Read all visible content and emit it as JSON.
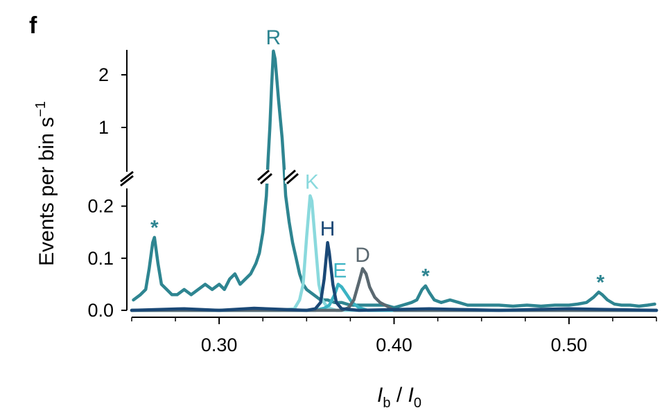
{
  "panel_label": "f",
  "chart_data": {
    "type": "line",
    "title": "",
    "xlabel": {
      "italic_main": "I",
      "sub_b": "b",
      "sep": " / ",
      "italic_main2": "I",
      "sub_0": "0"
    },
    "ylabel": {
      "text": "Events per bin s",
      "sup": "−1"
    },
    "xlim": [
      0.25,
      0.55
    ],
    "x_ticks": [
      0.3,
      0.4,
      0.5
    ],
    "x_tick_labels": [
      "0.30",
      "0.40",
      "0.50"
    ],
    "y_axis_break": true,
    "y_lower_range": [
      0.0,
      0.25
    ],
    "y_lower_ticks": [
      0.0,
      0.1,
      0.2
    ],
    "y_lower_tick_labels": [
      "0.0",
      "0.1",
      "0.2"
    ],
    "y_upper_range": [
      0.0,
      2.5
    ],
    "y_upper_ticks": [
      1,
      2
    ],
    "y_upper_tick_labels": [
      "1",
      "2"
    ],
    "series": [
      {
        "name": "R",
        "color": "#2e8591",
        "points": [
          [
            0.251,
            0.02
          ],
          [
            0.255,
            0.03
          ],
          [
            0.258,
            0.04
          ],
          [
            0.26,
            0.08
          ],
          [
            0.262,
            0.13
          ],
          [
            0.263,
            0.14
          ],
          [
            0.265,
            0.09
          ],
          [
            0.267,
            0.05
          ],
          [
            0.27,
            0.04
          ],
          [
            0.273,
            0.03
          ],
          [
            0.276,
            0.03
          ],
          [
            0.28,
            0.04
          ],
          [
            0.284,
            0.03
          ],
          [
            0.288,
            0.04
          ],
          [
            0.292,
            0.05
          ],
          [
            0.296,
            0.04
          ],
          [
            0.3,
            0.05
          ],
          [
            0.303,
            0.04
          ],
          [
            0.306,
            0.06
          ],
          [
            0.309,
            0.07
          ],
          [
            0.312,
            0.05
          ],
          [
            0.315,
            0.06
          ],
          [
            0.318,
            0.07
          ],
          [
            0.321,
            0.09
          ],
          [
            0.323,
            0.11
          ],
          [
            0.325,
            0.15
          ],
          [
            0.327,
            0.22
          ],
          [
            0.328,
            0.4
          ],
          [
            0.329,
            1.0
          ],
          [
            0.33,
            1.8
          ],
          [
            0.331,
            2.45
          ],
          [
            0.332,
            2.3
          ],
          [
            0.334,
            1.5
          ],
          [
            0.336,
            0.8
          ],
          [
            0.337,
            0.3
          ],
          [
            0.338,
            0.22
          ],
          [
            0.34,
            0.17
          ],
          [
            0.342,
            0.13
          ],
          [
            0.344,
            0.1
          ],
          [
            0.346,
            0.07
          ],
          [
            0.348,
            0.05
          ],
          [
            0.35,
            0.04
          ],
          [
            0.354,
            0.03
          ],
          [
            0.358,
            0.02
          ],
          [
            0.362,
            0.02
          ],
          [
            0.366,
            0.015
          ],
          [
            0.37,
            0.015
          ],
          [
            0.375,
            0.01
          ],
          [
            0.38,
            0.01
          ],
          [
            0.385,
            0.01
          ],
          [
            0.39,
            0.01
          ],
          [
            0.395,
            0.01
          ],
          [
            0.4,
            0.005
          ],
          [
            0.405,
            0.01
          ],
          [
            0.41,
            0.015
          ],
          [
            0.413,
            0.02
          ],
          [
            0.416,
            0.04
          ],
          [
            0.418,
            0.047
          ],
          [
            0.42,
            0.035
          ],
          [
            0.423,
            0.02
          ],
          [
            0.427,
            0.015
          ],
          [
            0.432,
            0.02
          ],
          [
            0.437,
            0.015
          ],
          [
            0.442,
            0.01
          ],
          [
            0.447,
            0.01
          ],
          [
            0.452,
            0.01
          ],
          [
            0.46,
            0.01
          ],
          [
            0.468,
            0.008
          ],
          [
            0.476,
            0.01
          ],
          [
            0.484,
            0.008
          ],
          [
            0.492,
            0.01
          ],
          [
            0.5,
            0.01
          ],
          [
            0.505,
            0.012
          ],
          [
            0.51,
            0.015
          ],
          [
            0.514,
            0.025
          ],
          [
            0.517,
            0.035
          ],
          [
            0.519,
            0.03
          ],
          [
            0.522,
            0.02
          ],
          [
            0.526,
            0.012
          ],
          [
            0.53,
            0.01
          ],
          [
            0.535,
            0.01
          ],
          [
            0.54,
            0.008
          ],
          [
            0.545,
            0.01
          ],
          [
            0.549,
            0.012
          ]
        ]
      },
      {
        "name": "K",
        "color": "#8ad9dd",
        "points": [
          [
            0.25,
            0.0
          ],
          [
            0.335,
            0.0
          ],
          [
            0.343,
            0.003
          ],
          [
            0.346,
            0.02
          ],
          [
            0.348,
            0.05
          ],
          [
            0.35,
            0.14
          ],
          [
            0.352,
            0.22
          ],
          [
            0.353,
            0.21
          ],
          [
            0.355,
            0.13
          ],
          [
            0.357,
            0.05
          ],
          [
            0.359,
            0.02
          ],
          [
            0.362,
            0.005
          ],
          [
            0.367,
            0.0
          ],
          [
            0.55,
            0.0
          ]
        ]
      },
      {
        "name": "E",
        "color": "#3bb3c3",
        "points": [
          [
            0.25,
            0.0
          ],
          [
            0.355,
            0.0
          ],
          [
            0.36,
            0.004
          ],
          [
            0.363,
            0.01
          ],
          [
            0.366,
            0.03
          ],
          [
            0.368,
            0.05
          ],
          [
            0.37,
            0.045
          ],
          [
            0.373,
            0.03
          ],
          [
            0.376,
            0.015
          ],
          [
            0.38,
            0.005
          ],
          [
            0.385,
            0.0
          ],
          [
            0.55,
            0.0
          ]
        ]
      },
      {
        "name": "D",
        "color": "#5a6870",
        "points": [
          [
            0.25,
            0.0
          ],
          [
            0.37,
            0.0
          ],
          [
            0.374,
            0.005
          ],
          [
            0.377,
            0.02
          ],
          [
            0.38,
            0.055
          ],
          [
            0.382,
            0.08
          ],
          [
            0.384,
            0.07
          ],
          [
            0.386,
            0.045
          ],
          [
            0.389,
            0.025
          ],
          [
            0.392,
            0.015
          ],
          [
            0.396,
            0.008
          ],
          [
            0.4,
            0.0
          ],
          [
            0.55,
            0.0
          ]
        ]
      },
      {
        "name": "H",
        "color": "#1a4876",
        "points": [
          [
            0.25,
            0.0
          ],
          [
            0.28,
            0.003
          ],
          [
            0.3,
            0.0
          ],
          [
            0.32,
            0.004
          ],
          [
            0.35,
            0.0
          ],
          [
            0.355,
            0.003
          ],
          [
            0.358,
            0.015
          ],
          [
            0.36,
            0.06
          ],
          [
            0.362,
            0.13
          ],
          [
            0.363,
            0.11
          ],
          [
            0.365,
            0.05
          ],
          [
            0.367,
            0.015
          ],
          [
            0.37,
            0.003
          ],
          [
            0.38,
            0.0
          ],
          [
            0.42,
            0.003
          ],
          [
            0.46,
            0.0
          ],
          [
            0.5,
            0.003
          ],
          [
            0.55,
            0.0
          ]
        ]
      }
    ],
    "peak_labels": [
      {
        "text": "R",
        "x": 0.331,
        "y_upper": 2.45,
        "color": "#2e8591"
      },
      {
        "text": "K",
        "x": 0.353,
        "y": 0.22,
        "color": "#8ad9dd"
      },
      {
        "text": "H",
        "x": 0.362,
        "y": 0.13,
        "color": "#1a4876"
      },
      {
        "text": "E",
        "x": 0.369,
        "y": 0.05,
        "color": "#3bb3c3"
      },
      {
        "text": "D",
        "x": 0.382,
        "y": 0.08,
        "color": "#5a6870"
      }
    ],
    "annotations": [
      {
        "text": "*",
        "x": 0.263,
        "y": 0.14,
        "color": "#2e8591"
      },
      {
        "text": "*",
        "x": 0.418,
        "y": 0.047,
        "color": "#2e8591"
      },
      {
        "text": "*",
        "x": 0.518,
        "y": 0.035,
        "color": "#2e8591"
      }
    ]
  }
}
